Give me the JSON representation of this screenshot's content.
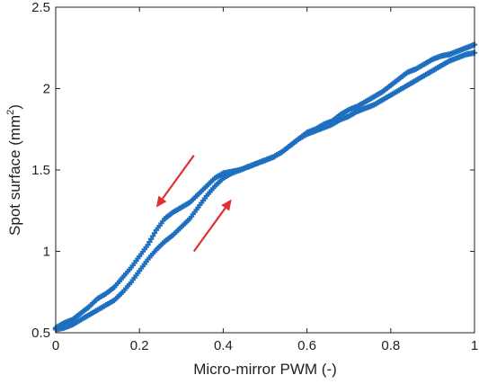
{
  "chart_data": {
    "type": "scatter",
    "xlabel": "Micro-mirror PWM (-)",
    "ylabel_main": "Spot surface (mm",
    "ylabel_sup": "2",
    "ylabel_close": ")",
    "xlim": [
      0,
      1
    ],
    "ylim": [
      0.5,
      2.5
    ],
    "x_ticks": [
      0,
      0.2,
      0.4,
      0.6,
      0.8,
      1
    ],
    "x_tick_labels": [
      "0",
      "0.2",
      "0.4",
      "0.6",
      "0.8",
      "1"
    ],
    "y_ticks": [
      0.5,
      1,
      1.5,
      2,
      2.5
    ],
    "y_tick_labels": [
      "0.5",
      "1",
      "1.5",
      "2",
      "2.5"
    ],
    "grid": false,
    "marker": "plus",
    "colors": {
      "series": "#1f6fc0",
      "arrow": "#e03030",
      "axis": "#222222"
    },
    "series": [
      {
        "direction": "increasing",
        "x": [
          0,
          0.02,
          0.04,
          0.06,
          0.08,
          0.1,
          0.12,
          0.14,
          0.16,
          0.18,
          0.2,
          0.22,
          0.24,
          0.26,
          0.28,
          0.3,
          0.32,
          0.34,
          0.36,
          0.38,
          0.4,
          0.42,
          0.44,
          0.46,
          0.48,
          0.5,
          0.52,
          0.54,
          0.56,
          0.58,
          0.6,
          0.62,
          0.64,
          0.66,
          0.68,
          0.7,
          0.72,
          0.74,
          0.76,
          0.78,
          0.8,
          0.82,
          0.84,
          0.86,
          0.88,
          0.9,
          0.92,
          0.94,
          0.96,
          0.98,
          1.0
        ],
        "y": [
          0.52,
          0.53,
          0.55,
          0.58,
          0.61,
          0.64,
          0.67,
          0.7,
          0.75,
          0.81,
          0.88,
          0.95,
          1.01,
          1.06,
          1.1,
          1.15,
          1.2,
          1.27,
          1.34,
          1.4,
          1.45,
          1.48,
          1.5,
          1.52,
          1.54,
          1.56,
          1.58,
          1.61,
          1.65,
          1.69,
          1.72,
          1.74,
          1.76,
          1.78,
          1.81,
          1.83,
          1.86,
          1.88,
          1.9,
          1.93,
          1.96,
          1.99,
          2.02,
          2.05,
          2.08,
          2.11,
          2.14,
          2.17,
          2.19,
          2.21,
          2.22
        ]
      },
      {
        "direction": "decreasing",
        "x": [
          1.0,
          0.98,
          0.96,
          0.94,
          0.92,
          0.9,
          0.88,
          0.86,
          0.84,
          0.82,
          0.8,
          0.78,
          0.76,
          0.74,
          0.72,
          0.7,
          0.68,
          0.66,
          0.64,
          0.62,
          0.6,
          0.58,
          0.56,
          0.54,
          0.52,
          0.5,
          0.48,
          0.46,
          0.44,
          0.42,
          0.4,
          0.38,
          0.36,
          0.34,
          0.32,
          0.3,
          0.28,
          0.26,
          0.24,
          0.22,
          0.2,
          0.18,
          0.16,
          0.14,
          0.12,
          0.1,
          0.08,
          0.06,
          0.04,
          0.02,
          0.0
        ],
        "y": [
          2.27,
          2.25,
          2.23,
          2.21,
          2.2,
          2.18,
          2.15,
          2.12,
          2.1,
          2.06,
          2.02,
          1.98,
          1.95,
          1.92,
          1.89,
          1.87,
          1.84,
          1.8,
          1.78,
          1.75,
          1.73,
          1.69,
          1.65,
          1.61,
          1.58,
          1.56,
          1.54,
          1.52,
          1.5,
          1.49,
          1.48,
          1.45,
          1.4,
          1.35,
          1.3,
          1.27,
          1.24,
          1.2,
          1.13,
          1.04,
          0.97,
          0.9,
          0.84,
          0.78,
          0.74,
          0.71,
          0.66,
          0.62,
          0.58,
          0.56,
          0.53
        ]
      }
    ],
    "arrows": [
      {
        "from": [
          0.33,
          1.59
        ],
        "to": [
          0.24,
          1.27
        ]
      },
      {
        "from": [
          0.33,
          1.0
        ],
        "to": [
          0.42,
          1.32
        ]
      }
    ]
  }
}
